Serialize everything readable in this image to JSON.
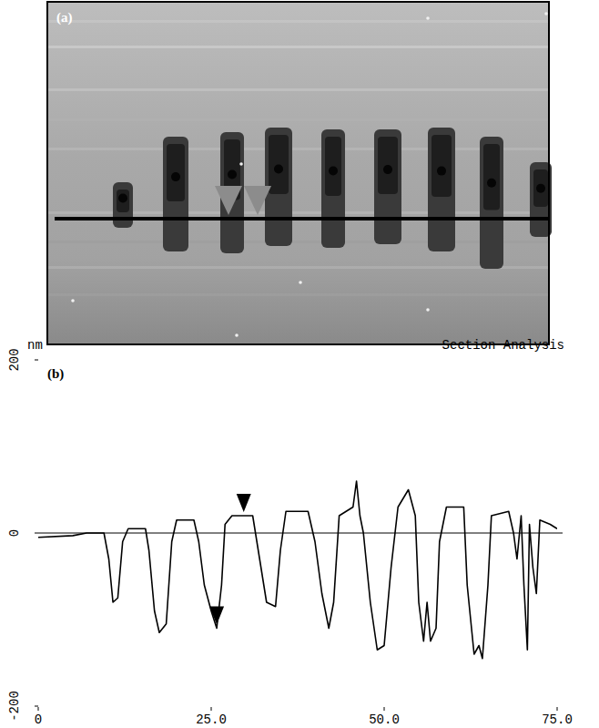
{
  "image_panel": {
    "label": "(a)"
  },
  "chart_data": {
    "type": "line",
    "label": "(b)",
    "title": "Section Analysis",
    "y_unit": "nm",
    "x": [
      0,
      5,
      7,
      9.5,
      10.2,
      10.8,
      11.5,
      12.2,
      13,
      15.5,
      16,
      16.8,
      17.5,
      18.5,
      19.3,
      20,
      22.5,
      23.2,
      24,
      25,
      25.8,
      26.5,
      27,
      28,
      31,
      32,
      33,
      34.3,
      35,
      35.8,
      39,
      40,
      41,
      42,
      42.7,
      43.5,
      45.5,
      46,
      46.5,
      47,
      48,
      49,
      50,
      51,
      52,
      53.5,
      54.5,
      55,
      55.7,
      56.2,
      56.7,
      57.5,
      58,
      59,
      61.5,
      62,
      63,
      63.7,
      64.2,
      65,
      65.5,
      68,
      68.7,
      69.2,
      69.8,
      70.2,
      70.7,
      71,
      71.5,
      72,
      72.5,
      74,
      75
    ],
    "values": [
      -5,
      -3,
      0,
      0,
      -30,
      -80,
      -75,
      -10,
      5,
      5,
      -20,
      -90,
      -115,
      -105,
      -10,
      15,
      15,
      -10,
      -60,
      -90,
      -110,
      -60,
      10,
      20,
      20,
      -30,
      -80,
      -85,
      -20,
      25,
      25,
      -10,
      -70,
      -110,
      -80,
      20,
      30,
      60,
      20,
      0,
      -80,
      -135,
      -130,
      -40,
      30,
      50,
      20,
      -80,
      -125,
      -80,
      -125,
      -110,
      -10,
      30,
      30,
      -60,
      -140,
      -130,
      -145,
      -60,
      20,
      25,
      0,
      -30,
      20,
      -60,
      -135,
      10,
      -40,
      -70,
      15,
      10,
      5
    ],
    "color": "#000000",
    "markers": [
      {
        "x": 25.8,
        "y": -110
      },
      {
        "x": 29.7,
        "y": 20
      }
    ],
    "xlim": [
      0,
      75
    ],
    "xticks": [
      0,
      {
        "value": 25,
        "label": "25.0"
      },
      {
        "value": 50,
        "label": "50.0"
      },
      {
        "value": 75,
        "label": "75.0"
      }
    ],
    "ylim": [
      -200,
      200
    ],
    "yticks": [
      -200,
      0,
      200
    ],
    "grid": true
  }
}
